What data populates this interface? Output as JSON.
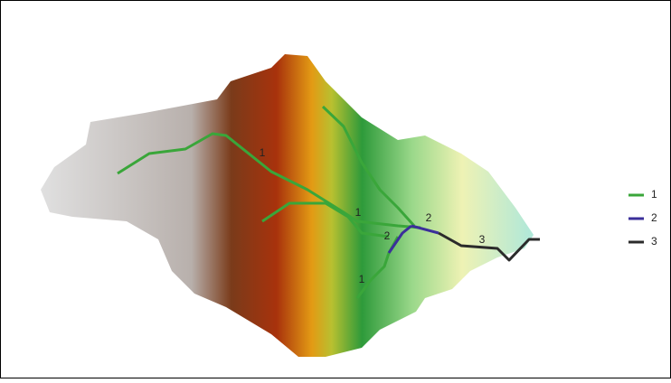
{
  "legend": {
    "items": [
      {
        "label": "1",
        "color": "#3aa63a"
      },
      {
        "label": "2",
        "color": "#3b2f9a"
      },
      {
        "label": "3",
        "color": "#2b2b2b"
      }
    ]
  },
  "map_labels": [
    "1",
    "1",
    "2",
    "3",
    "2",
    "1"
  ]
}
